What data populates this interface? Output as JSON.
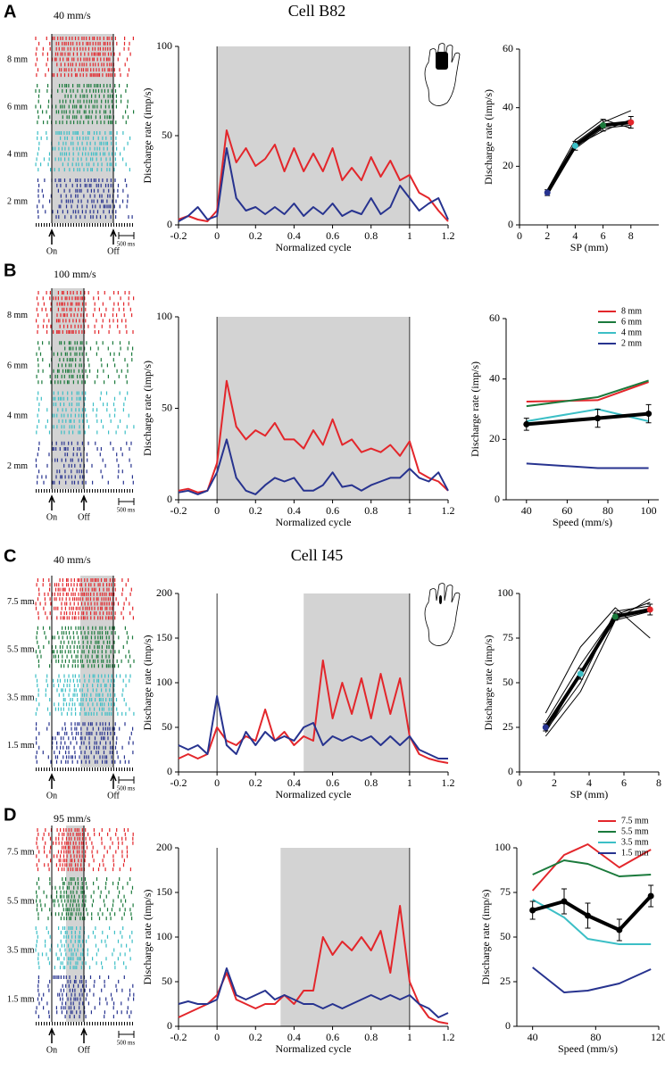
{
  "panels": [
    {
      "letter": "A",
      "cell_title": "Cell B82",
      "raster": {
        "speed": "40 mm/s",
        "rows": [
          "8 mm",
          "6 mm",
          "4 mm",
          "2 mm"
        ],
        "on": "On",
        "off": "Off",
        "scale": "500 ms"
      }
    },
    {
      "letter": "B",
      "raster": {
        "speed": "100 mm/s",
        "rows": [
          "8 mm",
          "6 mm",
          "4 mm",
          "2 mm"
        ],
        "on": "On",
        "off": "Off",
        "scale": "500 ms"
      }
    },
    {
      "letter": "C",
      "cell_title": "Cell I45",
      "raster": {
        "speed": "40 mm/s",
        "rows": [
          "7.5 mm",
          "5.5 mm",
          "3.5 mm",
          "1.5 mm"
        ],
        "on": "On",
        "off": "Off",
        "scale": "500 ms"
      }
    },
    {
      "letter": "D",
      "raster": {
        "speed": "95 mm/s",
        "rows": [
          "7.5 mm",
          "5.5 mm",
          "3.5 mm",
          "1.5 mm"
        ],
        "on": "On",
        "off": "Off",
        "scale": "500 ms"
      }
    }
  ],
  "chart_data": [
    {
      "type": "line",
      "x_label": "Normalized cycle",
      "y_label": "Discharge rate (imp/s)",
      "x": [
        -0.2,
        -0.15,
        -0.1,
        -0.05,
        0,
        0.05,
        0.1,
        0.15,
        0.2,
        0.25,
        0.3,
        0.35,
        0.4,
        0.45,
        0.5,
        0.55,
        0.6,
        0.65,
        0.7,
        0.75,
        0.8,
        0.85,
        0.9,
        0.95,
        1,
        1.05,
        1.1,
        1.15,
        1.2
      ],
      "xlim": [
        -0.2,
        1.2
      ],
      "xticks": [
        -0.2,
        0,
        0.2,
        0.4,
        0.6,
        0.8,
        1,
        1.2
      ],
      "ylim": [
        0,
        100
      ],
      "yticks": [
        0,
        50,
        100
      ],
      "shaded_interval": [
        0,
        1
      ],
      "cycle_lines": [
        0,
        1
      ],
      "series": [
        {
          "color": "#e3262b",
          "values": [
            3,
            5,
            3,
            2,
            8,
            53,
            35,
            43,
            33,
            37,
            45,
            30,
            43,
            30,
            40,
            30,
            43,
            25,
            32,
            25,
            38,
            27,
            36,
            25,
            28,
            18,
            15,
            8,
            2
          ]
        },
        {
          "color": "#27338f",
          "values": [
            2,
            5,
            10,
            3,
            5,
            43,
            15,
            8,
            10,
            6,
            10,
            6,
            12,
            5,
            10,
            6,
            12,
            5,
            8,
            6,
            15,
            6,
            10,
            22,
            15,
            8,
            12,
            15,
            3
          ]
        }
      ]
    },
    {
      "type": "line",
      "x_label": "SP (mm)",
      "y_label": "Discharge rate (imp/s)",
      "x": [
        2,
        4,
        6,
        8
      ],
      "xlim": [
        0,
        10
      ],
      "xticks": [
        0,
        2,
        4,
        6,
        8
      ],
      "ylim": [
        0,
        60
      ],
      "yticks": [
        0,
        20,
        40,
        60
      ],
      "series": [
        {
          "color": "#000000",
          "line_width": 1,
          "values": [
            10,
            28,
            35,
            39
          ]
        },
        {
          "color": "#000000",
          "line_width": 1,
          "values": [
            11,
            26,
            33,
            34
          ]
        },
        {
          "color": "#000000",
          "line_width": 1,
          "values": [
            12,
            29,
            36,
            33
          ]
        },
        {
          "color": "#000000",
          "line_width": 1,
          "values": [
            10,
            27,
            32,
            36
          ]
        },
        {
          "color": "#000000",
          "line_width": 4,
          "values": [
            11,
            27,
            34,
            35
          ],
          "errors": [
            1,
            1.5,
            2,
            2
          ],
          "point_colors": [
            "#27338f",
            "#3cbfc6",
            "#1b7a3c",
            "#e3262b"
          ]
        }
      ]
    },
    {
      "type": "line",
      "x_label": "Normalized cycle",
      "y_label": "Discharge rate (imp/s)",
      "x": [
        -0.2,
        -0.15,
        -0.1,
        -0.05,
        0,
        0.05,
        0.1,
        0.15,
        0.2,
        0.25,
        0.3,
        0.35,
        0.4,
        0.45,
        0.5,
        0.55,
        0.6,
        0.65,
        0.7,
        0.75,
        0.8,
        0.85,
        0.9,
        0.95,
        1,
        1.05,
        1.1,
        1.15,
        1.2
      ],
      "xlim": [
        -0.2,
        1.2
      ],
      "xticks": [
        -0.2,
        0,
        0.2,
        0.4,
        0.6,
        0.8,
        1,
        1.2
      ],
      "ylim": [
        0,
        100
      ],
      "yticks": [
        0,
        50,
        100
      ],
      "shaded_interval": [
        0,
        1
      ],
      "cycle_lines": [
        0,
        1
      ],
      "series": [
        {
          "color": "#e3262b",
          "values": [
            5,
            6,
            4,
            5,
            20,
            65,
            40,
            33,
            38,
            35,
            42,
            33,
            33,
            28,
            38,
            30,
            44,
            30,
            33,
            26,
            28,
            26,
            30,
            24,
            32,
            15,
            12,
            10,
            5
          ]
        },
        {
          "color": "#27338f",
          "values": [
            4,
            5,
            3,
            5,
            15,
            33,
            12,
            5,
            3,
            8,
            12,
            10,
            12,
            5,
            5,
            8,
            15,
            7,
            8,
            5,
            8,
            10,
            12,
            12,
            17,
            12,
            10,
            15,
            5
          ]
        }
      ]
    },
    {
      "type": "line",
      "x_label": "Speed (mm/s)",
      "y_label": "Discharge rate (imp/s)",
      "x": [
        40,
        75,
        100
      ],
      "xlim": [
        30,
        105
      ],
      "xticks": [
        40,
        60,
        80,
        100
      ],
      "ylim": [
        0,
        60
      ],
      "yticks": [
        0,
        20,
        40,
        60
      ],
      "legend": "upper right",
      "series": [
        {
          "name": "8 mm",
          "color": "#e3262b",
          "line_width": 2,
          "values": [
            32.5,
            33,
            39
          ]
        },
        {
          "name": "6 mm",
          "color": "#1b7a3c",
          "line_width": 2,
          "values": [
            31,
            34,
            39.5
          ]
        },
        {
          "name": "4 mm",
          "color": "#3cbfc6",
          "line_width": 2,
          "values": [
            26,
            30,
            26
          ]
        },
        {
          "name": "2 mm",
          "color": "#27338f",
          "line_width": 2,
          "values": [
            12,
            10.5,
            10.5
          ]
        },
        {
          "color": "#000000",
          "line_width": 4,
          "values": [
            25,
            27,
            28.5
          ],
          "errors": [
            2,
            3,
            3
          ]
        }
      ]
    },
    {
      "type": "line",
      "x_label": "Normalized cycle",
      "y_label": "Discharge rate (imp/s)",
      "x": [
        -0.2,
        -0.15,
        -0.1,
        -0.05,
        0,
        0.05,
        0.1,
        0.15,
        0.2,
        0.25,
        0.3,
        0.35,
        0.4,
        0.45,
        0.5,
        0.55,
        0.6,
        0.65,
        0.7,
        0.75,
        0.8,
        0.85,
        0.9,
        0.95,
        1,
        1.05,
        1.1,
        1.15,
        1.2
      ],
      "xlim": [
        -0.2,
        1.2
      ],
      "xticks": [
        -0.2,
        0,
        0.2,
        0.4,
        0.6,
        0.8,
        1,
        1.2
      ],
      "ylim": [
        0,
        200
      ],
      "yticks": [
        0,
        50,
        100,
        150,
        200
      ],
      "shaded_interval": [
        0.45,
        1
      ],
      "cycle_lines": [
        0,
        1
      ],
      "series": [
        {
          "color": "#e3262b",
          "values": [
            15,
            20,
            15,
            20,
            50,
            35,
            30,
            40,
            35,
            70,
            35,
            45,
            30,
            40,
            35,
            125,
            60,
            100,
            65,
            105,
            60,
            110,
            65,
            105,
            40,
            20,
            15,
            12,
            10
          ]
        },
        {
          "color": "#27338f",
          "values": [
            30,
            25,
            30,
            20,
            85,
            30,
            20,
            45,
            30,
            45,
            35,
            40,
            35,
            50,
            55,
            30,
            40,
            35,
            40,
            35,
            40,
            30,
            40,
            30,
            40,
            25,
            20,
            15,
            15
          ]
        }
      ]
    },
    {
      "type": "line",
      "x_label": "SP (mm)",
      "y_label": "Discharge rate (imp/s)",
      "x": [
        1.5,
        3.5,
        5.5,
        7.5
      ],
      "xlim": [
        0,
        8
      ],
      "xticks": [
        0,
        2,
        4,
        6,
        8
      ],
      "ylim": [
        0,
        100
      ],
      "yticks": [
        0,
        25,
        50,
        75,
        100
      ],
      "series": [
        {
          "color": "#000000",
          "line_width": 1,
          "values": [
            20,
            45,
            85,
            97
          ]
        },
        {
          "color": "#000000",
          "line_width": 1,
          "values": [
            23,
            50,
            90,
            93
          ]
        },
        {
          "color": "#000000",
          "line_width": 1,
          "values": [
            33,
            70,
            92,
            75
          ]
        },
        {
          "color": "#000000",
          "line_width": 1,
          "values": [
            28,
            60,
            88,
            95
          ]
        },
        {
          "color": "#000000",
          "line_width": 1,
          "values": [
            22,
            55,
            85,
            90
          ]
        },
        {
          "color": "#000000",
          "line_width": 4,
          "values": [
            25,
            55,
            87,
            91
          ],
          "errors": [
            2,
            3,
            2,
            3
          ],
          "point_colors": [
            "#27338f",
            "#3cbfc6",
            "#1b7a3c",
            "#e3262b"
          ]
        }
      ]
    },
    {
      "type": "line",
      "x_label": "Normalized cycle",
      "y_label": "Discharge rate (imp/s)",
      "x": [
        -0.2,
        -0.15,
        -0.1,
        -0.05,
        0,
        0.05,
        0.1,
        0.15,
        0.2,
        0.25,
        0.3,
        0.35,
        0.4,
        0.45,
        0.5,
        0.55,
        0.6,
        0.65,
        0.7,
        0.75,
        0.8,
        0.85,
        0.9,
        0.95,
        1,
        1.05,
        1.1,
        1.15,
        1.2
      ],
      "xlim": [
        -0.2,
        1.2
      ],
      "xticks": [
        -0.2,
        0,
        0.2,
        0.4,
        0.6,
        0.8,
        1,
        1.2
      ],
      "ylim": [
        0,
        200
      ],
      "yticks": [
        0,
        50,
        100,
        150,
        200
      ],
      "shaded_interval": [
        0.33,
        1
      ],
      "cycle_lines": [
        0,
        1
      ],
      "series": [
        {
          "color": "#e3262b",
          "values": [
            10,
            15,
            20,
            25,
            35,
            60,
            30,
            25,
            20,
            25,
            25,
            35,
            25,
            40,
            40,
            100,
            80,
            95,
            85,
            100,
            85,
            107,
            60,
            135,
            50,
            25,
            10,
            5,
            3
          ]
        },
        {
          "color": "#27338f",
          "values": [
            25,
            28,
            25,
            25,
            30,
            65,
            35,
            30,
            35,
            40,
            30,
            35,
            30,
            25,
            25,
            20,
            25,
            20,
            25,
            30,
            35,
            30,
            35,
            30,
            35,
            25,
            20,
            10,
            15
          ]
        }
      ]
    },
    {
      "type": "line",
      "x_label": "Speed (mm/s)",
      "y_label": "Discharge rate (imp/s)",
      "x": [
        40,
        60,
        75,
        95,
        115
      ],
      "xlim": [
        30,
        120
      ],
      "xticks": [
        40,
        80,
        120
      ],
      "ylim": [
        0,
        100
      ],
      "yticks": [
        0,
        25,
        50,
        75,
        100
      ],
      "legend": "upper right",
      "series": [
        {
          "name": "7.5 mm",
          "color": "#e3262b",
          "line_width": 2,
          "values": [
            76,
            96,
            102,
            89,
            99
          ]
        },
        {
          "name": "5.5 mm",
          "color": "#1b7a3c",
          "line_width": 2,
          "values": [
            85,
            93,
            91,
            84,
            85
          ]
        },
        {
          "name": "3.5 mm",
          "color": "#3cbfc6",
          "line_width": 2,
          "values": [
            71,
            61,
            49,
            46,
            46
          ]
        },
        {
          "name": "1.5 mm",
          "color": "#27338f",
          "line_width": 2,
          "values": [
            33,
            19,
            20,
            24,
            32
          ]
        },
        {
          "color": "#000000",
          "line_width": 4,
          "values": [
            65,
            70,
            62,
            54,
            73
          ],
          "errors": [
            5,
            7,
            7,
            6,
            6
          ]
        }
      ]
    }
  ]
}
